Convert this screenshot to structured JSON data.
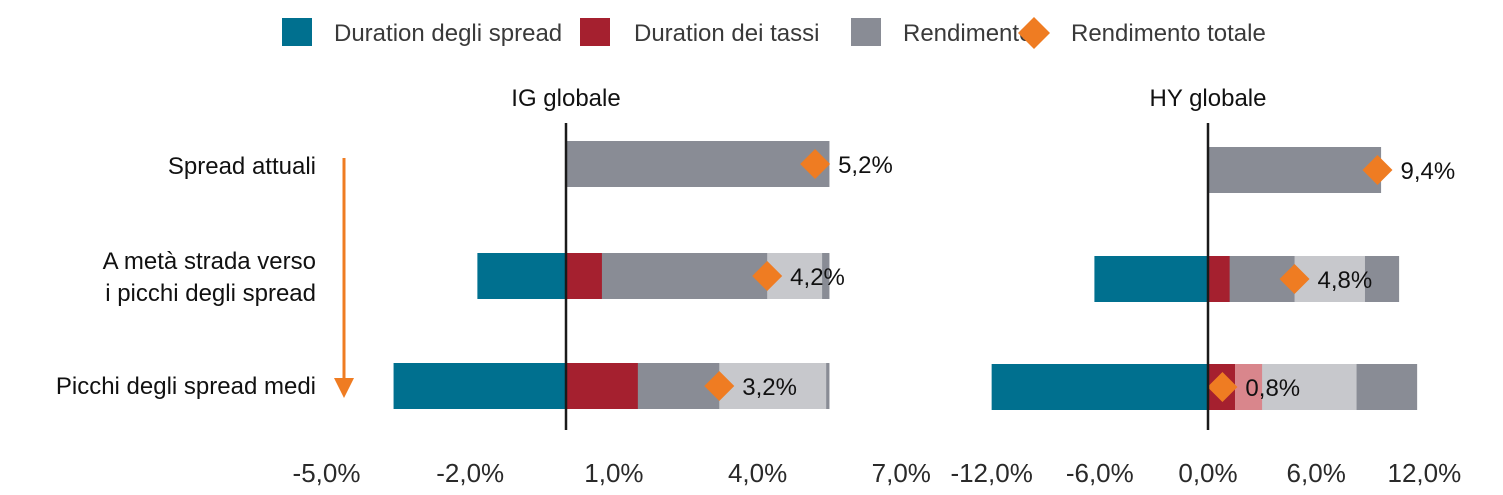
{
  "chart_data": {
    "type": "bar",
    "orientation": "horizontal",
    "stacked": true,
    "legend": {
      "position": "top",
      "items": [
        {
          "label": "Duration degli spread",
          "color": "#00708f",
          "marker": "square"
        },
        {
          "label": "Duration dei tassi",
          "color": "#a5202f",
          "marker": "square"
        },
        {
          "label": "Rendimento",
          "color": "#898c95",
          "marker": "square"
        },
        {
          "label": "Rendimento totale",
          "color": "#ef7c22",
          "marker": "diamond"
        }
      ]
    },
    "categories": [
      [
        "Spread attuali"
      ],
      [
        "A metà strada verso",
        "i picchi degli spread"
      ],
      [
        "Picchi degli spread medi"
      ]
    ],
    "arrow_color": "#ef7c22",
    "colors": {
      "spread": "#00708f",
      "rates": "#a5202f",
      "rates_light": "#d9868c",
      "yield": "#898c95",
      "yield_light": "#c7c8cc",
      "total": "#ef7c22"
    },
    "panels": [
      {
        "title": "IG globale",
        "xlim": [
          -5,
          8
        ],
        "ticks": [
          -5,
          -2,
          1,
          4,
          7
        ],
        "tick_labels": [
          "-5,0%",
          "-2,0%",
          "1,0%",
          "4,0%",
          "7,0%"
        ],
        "rows": [
          {
            "spread": 0,
            "rates": 0,
            "yield": 5.5,
            "total": 5.2,
            "total_label": "5,2%"
          },
          {
            "spread": -1.85,
            "rates": 0.75,
            "yield": 5.5,
            "total": 4.2,
            "total_label": "4,2%"
          },
          {
            "spread": -3.6,
            "rates": 1.5,
            "yield": 5.5,
            "total": 3.2,
            "total_label": "3,2%"
          }
        ]
      },
      {
        "title": "HY globale",
        "xlim": [
          -12,
          12
        ],
        "ticks": [
          -12,
          -6,
          0,
          6,
          12
        ],
        "tick_labels": [
          "-12,0%",
          "-6,0%",
          "0,0%",
          "6,0%",
          "12,0%"
        ],
        "rows": [
          {
            "spread": 0,
            "rates": 0,
            "yield": 9.6,
            "total": 9.4,
            "total_label": "9,4%"
          },
          {
            "spread": -6.3,
            "rates": 1.2,
            "yield": 10.6,
            "total": 4.8,
            "total_label": "4,8%"
          },
          {
            "spread": -12,
            "rates": 1.5,
            "yield": 11.6,
            "total": 0.8,
            "total_label": "0,8%"
          }
        ]
      }
    ]
  }
}
